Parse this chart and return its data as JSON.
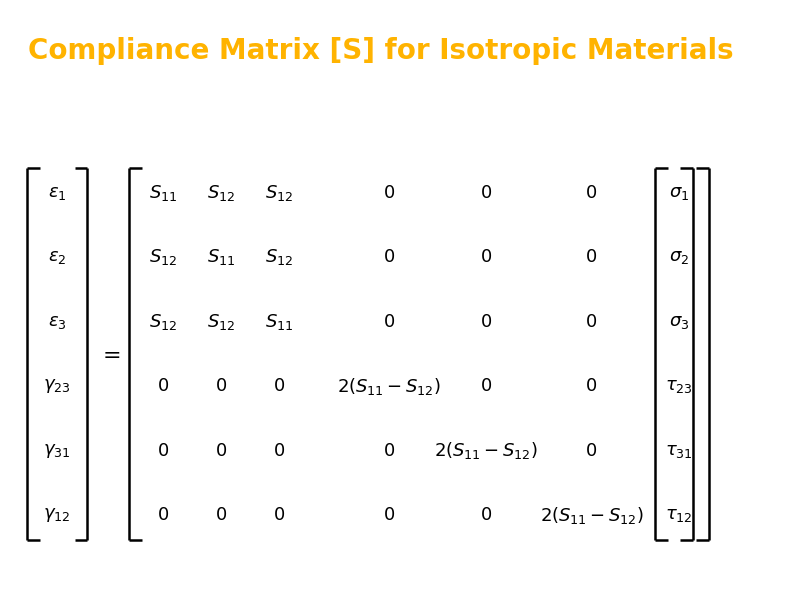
{
  "title": "Compliance Matrix [S] for Isotropic Materials",
  "title_color": "#FFB300",
  "title_bg_color": "#000000",
  "body_bg_color": "#FFFFFF",
  "title_fontsize": 20,
  "matrix_fontsize": 13,
  "fig_width": 7.94,
  "fig_height": 5.95,
  "left_vector": [
    "\\varepsilon_1",
    "\\varepsilon_2",
    "\\varepsilon_3",
    "\\gamma_{23}",
    "\\gamma_{31}",
    "\\gamma_{12}"
  ],
  "right_vector": [
    "\\sigma_1",
    "\\sigma_2",
    "\\sigma_3",
    "\\tau_{23}",
    "\\tau_{31}",
    "\\tau_{12}"
  ],
  "matrix_rows": [
    [
      "S_{11}",
      "S_{12}",
      "S_{12}",
      "0",
      "0",
      "0"
    ],
    [
      "S_{12}",
      "S_{11}",
      "S_{12}",
      "0",
      "0",
      "0"
    ],
    [
      "S_{12}",
      "S_{12}",
      "S_{11}",
      "0",
      "0",
      "0"
    ],
    [
      "0",
      "0",
      "0",
      "2(S_{11}-S_{12})",
      "0",
      "0"
    ],
    [
      "0",
      "0",
      "0",
      "0",
      "2(S_{11}-S_{12})",
      "0"
    ],
    [
      "0",
      "0",
      "0",
      "0",
      "0",
      "2(S_{11}-S_{12})"
    ]
  ]
}
